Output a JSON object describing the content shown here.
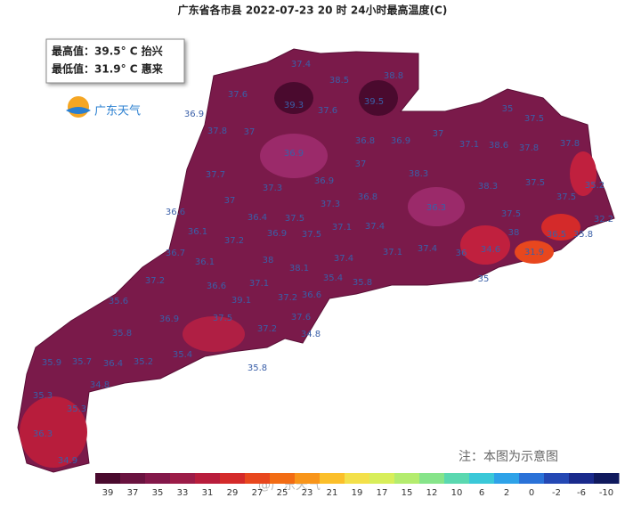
{
  "header": {
    "title": "广东省各市县  2022-07-23 20 时  24小时最高温度(C)"
  },
  "info_box": {
    "max": "最高值：39.5° C  抬兴",
    "min": "最低值：31.9° C  惠来"
  },
  "logo": {
    "text": "广东天气"
  },
  "note": "注：本图为示意图",
  "watermark": "@广东天气",
  "map_labels": [
    37.4,
    38.5,
    38.8,
    37.6,
    39.3,
    37.6,
    39.5,
    35,
    37.5,
    36.9,
    37.8,
    37,
    36.8,
    36.9,
    37,
    37.1,
    38.6,
    37.8,
    37.8,
    36.9,
    37,
    38.3,
    38.3,
    37.5,
    37.7,
    37.3,
    36.9,
    37,
    37.3,
    36.8,
    37.5,
    35.2,
    36.3,
    36.6,
    37.5,
    36.1,
    37.2,
    36.4,
    37.5,
    37.5,
    37.1,
    37.4,
    38,
    36.5,
    35.8,
    32.2,
    36.7,
    36.9,
    37.1,
    37.4,
    36,
    34.6,
    31.9,
    36.1,
    38,
    38.1,
    37.4,
    37.2,
    36.6,
    37.1,
    35.4,
    35.8,
    35,
    35.6,
    39.1,
    37.2,
    36.6,
    36.9,
    37.5,
    37.6,
    35.8,
    37.2,
    34.8,
    35.9,
    35.7,
    36.4,
    35.2,
    35.4,
    35.8,
    34.8,
    35.3,
    35.3,
    36.3,
    34.9
  ],
  "colorbar": {
    "labels": [
      39,
      37,
      35,
      33,
      31,
      29,
      27,
      25,
      23,
      21,
      19,
      17,
      15,
      12,
      10,
      6,
      2,
      0,
      -2,
      -6,
      -10
    ],
    "colors": [
      "#4a0a2e",
      "#6a1340",
      "#83184a",
      "#9c1c48",
      "#b81d3c",
      "#d42a2a",
      "#e8471e",
      "#f26c14",
      "#f8951a",
      "#fbbf2a",
      "#f3e04a",
      "#d8ee5a",
      "#b4ec6e",
      "#86e48a",
      "#5ad8b0",
      "#3ac8d8",
      "#2ea2e8",
      "#2a72d8",
      "#2448b4",
      "#1a2a8c",
      "#101a5e"
    ]
  }
}
